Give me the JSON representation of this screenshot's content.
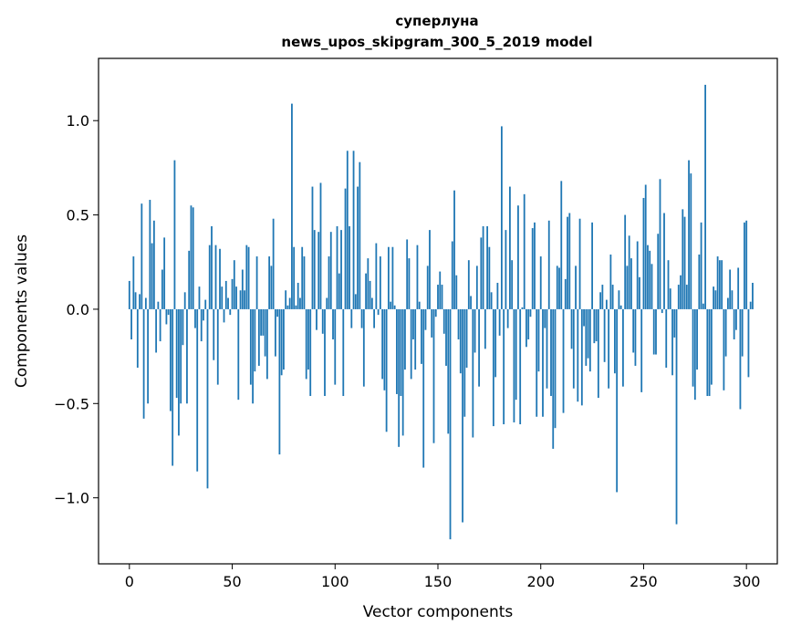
{
  "chart_data": {
    "type": "bar",
    "title": "суперлуна",
    "subtitle": "news_upos_skipgram_300_5_2019 model",
    "xlabel": "Vector components",
    "ylabel": "Components values",
    "xlim": [
      -15,
      315
    ],
    "ylim": [
      -1.35,
      1.33
    ],
    "xticks": [
      0,
      50,
      100,
      150,
      200,
      250,
      300
    ],
    "xtick_labels": [
      "0",
      "50",
      "100",
      "150",
      "200",
      "250",
      "300"
    ],
    "yticks": [
      -1.0,
      -0.5,
      0.0,
      0.5,
      1.0
    ],
    "ytick_labels": [
      "−1.0",
      "−0.5",
      "0.0",
      "0.5",
      "1.0"
    ],
    "grid": false,
    "bar_color": "#1f77b4",
    "values": [
      0.15,
      -0.16,
      0.28,
      0.09,
      -0.31,
      0.08,
      0.56,
      -0.58,
      0.06,
      -0.5,
      0.58,
      0.35,
      0.47,
      -0.23,
      0.04,
      -0.17,
      0.21,
      0.38,
      -0.08,
      -0.03,
      -0.54,
      -0.83,
      0.79,
      -0.47,
      -0.67,
      -0.5,
      -0.19,
      0.09,
      -0.5,
      0.31,
      0.55,
      0.54,
      -0.1,
      -0.86,
      0.12,
      -0.17,
      -0.06,
      0.05,
      -0.95,
      0.34,
      0.44,
      -0.27,
      0.34,
      -0.4,
      0.32,
      0.12,
      -0.07,
      0.15,
      0.06,
      -0.03,
      0.16,
      0.26,
      0.12,
      -0.48,
      0.1,
      0.21,
      0.1,
      0.34,
      0.33,
      -0.4,
      -0.5,
      -0.33,
      0.28,
      -0.3,
      -0.14,
      -0.14,
      -0.25,
      -0.37,
      0.28,
      0.23,
      0.48,
      -0.25,
      -0.04,
      -0.77,
      -0.35,
      -0.32,
      0.1,
      0.02,
      0.06,
      1.09,
      0.33,
      0.02,
      0.14,
      0.06,
      0.33,
      0.28,
      -0.37,
      -0.32,
      -0.46,
      0.65,
      0.42,
      -0.11,
      0.41,
      0.67,
      -0.13,
      -0.46,
      0.06,
      0.28,
      0.41,
      -0.16,
      -0.4,
      0.44,
      0.19,
      0.42,
      -0.46,
      0.64,
      0.84,
      0.44,
      -0.1,
      0.84,
      0.08,
      0.65,
      0.78,
      -0.1,
      -0.41,
      0.19,
      0.27,
      0.15,
      0.06,
      -0.1,
      0.35,
      -0.03,
      0.28,
      -0.37,
      -0.43,
      -0.65,
      0.33,
      0.04,
      0.33,
      0.02,
      -0.45,
      -0.73,
      -0.46,
      -0.67,
      -0.32,
      0.37,
      0.27,
      -0.37,
      -0.16,
      -0.32,
      0.34,
      0.04,
      -0.29,
      -0.84,
      -0.11,
      0.23,
      0.42,
      -0.15,
      -0.71,
      -0.04,
      0.13,
      0.2,
      0.13,
      -0.13,
      -0.3,
      -0.66,
      -1.22,
      0.36,
      0.63,
      0.18,
      -0.16,
      -0.34,
      -1.13,
      -0.57,
      -0.31,
      0.26,
      0.07,
      -0.68,
      -0.23,
      0.23,
      -0.41,
      0.38,
      0.44,
      -0.21,
      0.44,
      0.33,
      0.09,
      -0.62,
      -0.36,
      0.14,
      -0.14,
      0.97,
      -0.61,
      0.42,
      -0.1,
      0.65,
      0.26,
      -0.6,
      -0.48,
      0.55,
      -0.61,
      0.01,
      0.61,
      -0.2,
      -0.16,
      -0.04,
      0.43,
      0.46,
      -0.57,
      -0.33,
      0.28,
      -0.57,
      -0.1,
      -0.42,
      0.47,
      -0.46,
      -0.74,
      -0.63,
      0.23,
      0.22,
      0.68,
      -0.55,
      0.16,
      0.49,
      0.51,
      -0.21,
      -0.42,
      0.23,
      -0.49,
      0.48,
      -0.51,
      -0.09,
      -0.3,
      -0.26,
      -0.33,
      0.46,
      -0.18,
      -0.17,
      -0.47,
      0.09,
      0.13,
      -0.28,
      0.05,
      -0.42,
      0.29,
      0.13,
      -0.34,
      -0.97,
      0.1,
      0.02,
      -0.41,
      0.5,
      0.23,
      0.39,
      0.27,
      -0.23,
      -0.3,
      0.36,
      0.17,
      -0.44,
      0.59,
      0.66,
      0.34,
      0.31,
      0.24,
      -0.24,
      -0.24,
      0.4,
      0.69,
      -0.02,
      0.51,
      -0.31,
      0.26,
      0.11,
      -0.35,
      -0.15,
      -1.14,
      0.13,
      0.18,
      0.53,
      0.49,
      0.13,
      0.79,
      0.72,
      -0.41,
      -0.48,
      -0.32,
      0.29,
      0.46,
      0.03,
      1.19,
      -0.46,
      -0.46,
      -0.4,
      0.12,
      0.1,
      0.28,
      0.26,
      0.26,
      -0.43,
      -0.25,
      0.06,
      0.21,
      0.1,
      -0.16,
      -0.11,
      0.22,
      -0.53,
      -0.25,
      0.46,
      0.47,
      -0.36,
      0.04,
      0.14
    ]
  }
}
